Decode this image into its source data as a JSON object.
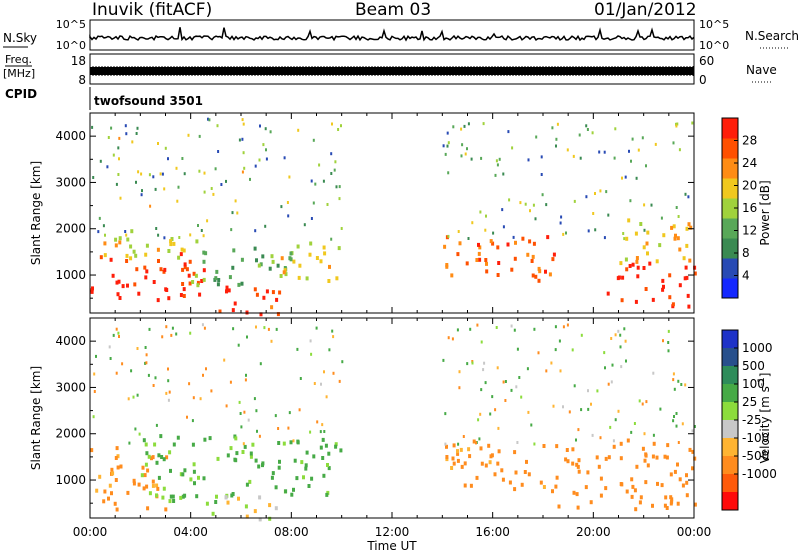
{
  "header": {
    "station": "Inuvik (fitACF)",
    "beam": "Beam 03",
    "date": "01/Jan/2012"
  },
  "nsky_panel": {
    "left_label": "N.Sky",
    "left_ticks": [
      "10^5",
      "10^0"
    ],
    "right_label": "N.Search",
    "right_ticks": [
      "10^5",
      "10^0"
    ]
  },
  "freq_panel": {
    "left_label_line1": "Freq.",
    "left_label_line2": "[MHz]",
    "left_ticks": [
      "18",
      "8"
    ],
    "right_label": "Nave",
    "right_ticks": [
      "60",
      "0"
    ]
  },
  "cpid_panel": {
    "label": "CPID",
    "program": "twofsound 3501"
  },
  "x_axis": {
    "label": "Time UT",
    "ticks": [
      "00:00",
      "04:00",
      "08:00",
      "12:00",
      "16:00",
      "20:00",
      "00:00"
    ]
  },
  "colors": {
    "power_scale": [
      "#1428ff",
      "#284ab4",
      "#3a8a52",
      "#58a858",
      "#a0d23c",
      "#f0c81e",
      "#ff8c14",
      "#ff5000",
      "#ff1e0a"
    ],
    "velocity_scale": [
      "#ff0a0a",
      "#ff5a0a",
      "#ff8c1e",
      "#ffb432",
      "#c8c8c8",
      "#8cdc3c",
      "#46aa46",
      "#2e8c5a",
      "#28508c",
      "#1e32c8"
    ]
  },
  "chart_data": [
    {
      "type": "heatmap",
      "title": "",
      "xlabel": "Time UT",
      "ylabel": "Slant Range [km]",
      "xlim": [
        0,
        24
      ],
      "ylim": [
        180,
        4500
      ],
      "y_ticks": [
        1000,
        2000,
        3000,
        4000
      ],
      "colorbar": {
        "label": "Power [dB]",
        "range": [
          0,
          32
        ],
        "ticks": [
          4,
          8,
          12,
          16,
          20,
          24,
          28
        ]
      },
      "regions": [
        {
          "t0": 0.0,
          "t1": 4.5,
          "r0": 400,
          "r1": 1500,
          "value": 29
        },
        {
          "t0": 0.0,
          "t1": 4.5,
          "r0": 1400,
          "r1": 2000,
          "value": 18
        },
        {
          "t0": 4.5,
          "t1": 7.5,
          "r0": 180,
          "r1": 800,
          "value": 28
        },
        {
          "t0": 4.0,
          "t1": 8.0,
          "r0": 800,
          "r1": 1700,
          "value": 12
        },
        {
          "t0": 7.5,
          "t1": 10.0,
          "r0": 900,
          "r1": 1800,
          "value": 20
        },
        {
          "t0": 14.0,
          "t1": 18.5,
          "r0": 900,
          "r1": 1900,
          "value": 26
        },
        {
          "t0": 20.5,
          "t1": 24.0,
          "r0": 350,
          "r1": 1300,
          "value": 30
        },
        {
          "t0": 21.0,
          "t1": 24.0,
          "r0": 1300,
          "r1": 2300,
          "value": 20
        }
      ]
    },
    {
      "type": "heatmap",
      "title": "",
      "xlabel": "Time UT",
      "ylabel": "Slant Range [km]",
      "xlim": [
        0,
        24
      ],
      "ylim": [
        180,
        4500
      ],
      "y_ticks": [
        1000,
        2000,
        3000,
        4000
      ],
      "colorbar": {
        "label": "Velocity [m s^-1]",
        "ticks": [
          1000,
          500,
          100,
          25,
          -25,
          -100,
          -500,
          -1000
        ]
      },
      "regions": [
        {
          "t0": 0.0,
          "t1": 3.0,
          "r0": 400,
          "r1": 1800,
          "value": -150
        },
        {
          "t0": 2.0,
          "t1": 6.5,
          "r0": 500,
          "r1": 2000,
          "value": 120
        },
        {
          "t0": 4.5,
          "t1": 7.5,
          "r0": 180,
          "r1": 700,
          "value": 0
        },
        {
          "t0": 6.5,
          "t1": 10.0,
          "r0": 700,
          "r1": 2000,
          "value": 150
        },
        {
          "t0": 14.0,
          "t1": 18.5,
          "r0": 800,
          "r1": 1900,
          "value": -150
        },
        {
          "t0": 18.5,
          "t1": 24.0,
          "r0": 400,
          "r1": 1900,
          "value": -200
        }
      ]
    }
  ]
}
